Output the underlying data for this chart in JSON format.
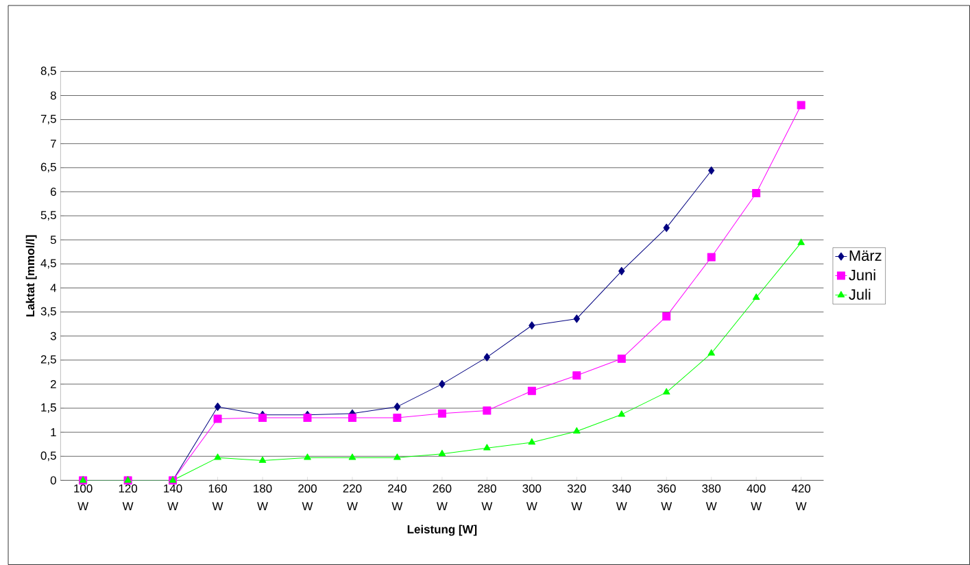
{
  "chart_data": {
    "type": "line",
    "xlabel": "Leistung [W]",
    "ylabel": "Laktat [mmol/l]",
    "categories": [
      "100 W",
      "120 W",
      "140 W",
      "160 W",
      "180 W",
      "200 W",
      "220 W",
      "240 W",
      "260 W",
      "280 W",
      "300 W",
      "320 W",
      "340 W",
      "360 W",
      "380 W",
      "400 W",
      "420 W"
    ],
    "series": [
      {
        "name": "März",
        "color": "#000080",
        "marker": "diamond",
        "values": [
          0,
          0,
          0,
          1.53,
          1.36,
          1.36,
          1.39,
          1.53,
          2.0,
          2.56,
          3.22,
          3.36,
          4.35,
          5.25,
          6.44,
          null,
          null
        ]
      },
      {
        "name": "Juni",
        "color": "#ff00ff",
        "marker": "square",
        "values": [
          0,
          0,
          0,
          1.28,
          1.3,
          1.3,
          1.3,
          1.3,
          1.39,
          1.45,
          1.86,
          2.18,
          2.53,
          3.41,
          4.64,
          5.97,
          7.8
        ]
      },
      {
        "name": "Juli",
        "color": "#00ff00",
        "marker": "triangle",
        "values": [
          0,
          0,
          0,
          0.47,
          0.41,
          0.47,
          0.47,
          0.47,
          0.55,
          0.67,
          0.79,
          1.02,
          1.37,
          1.83,
          2.64,
          3.8,
          4.94
        ]
      }
    ],
    "ylim": [
      0,
      8.5
    ],
    "yticks": [
      0,
      {
        "value": 0.5,
        "label": "0,5"
      },
      1,
      {
        "value": 1.5,
        "label": "1,5"
      },
      2,
      {
        "value": 2.5,
        "label": "2,5"
      },
      3,
      {
        "value": 3.5,
        "label": "3,5"
      },
      4,
      {
        "value": 4.5,
        "label": "4,5"
      },
      5,
      {
        "value": 5.5,
        "label": "5,5"
      },
      6,
      {
        "value": 6.5,
        "label": "6,5"
      },
      7,
      {
        "value": 7.5,
        "label": "7,5"
      },
      8,
      {
        "value": 8.5,
        "label": "8,5"
      }
    ],
    "grid": "y",
    "legend": "right",
    "line_style": "solid"
  }
}
